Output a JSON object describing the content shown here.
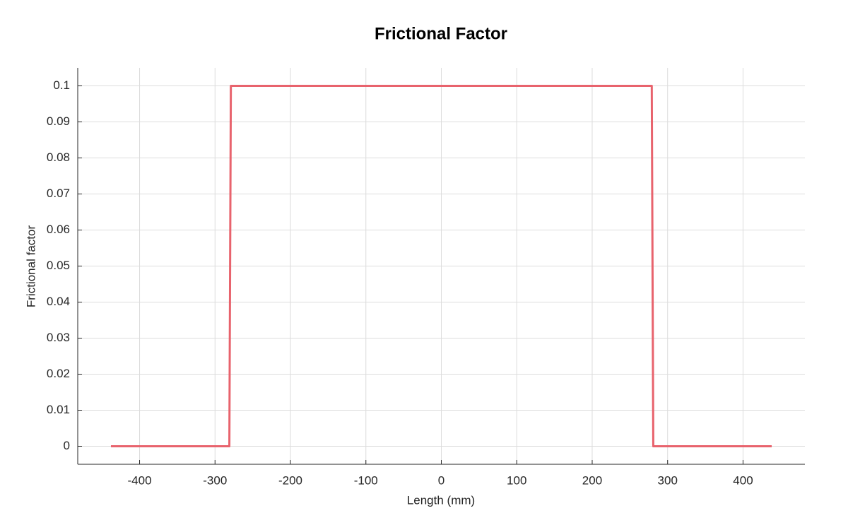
{
  "chart_data": {
    "type": "line",
    "title": "Frictional Factor",
    "x_label": "Length (mm)",
    "y_label": "Frictional factor",
    "x": [
      -438,
      -281,
      -279,
      279,
      281,
      438
    ],
    "values": [
      0,
      0,
      0.1,
      0.1,
      0,
      0
    ],
    "color": "#e8636d",
    "xlim": [
      -482,
      482
    ],
    "ylim": [
      -0.005,
      0.105
    ],
    "xticks": [
      -400,
      -300,
      -200,
      -100,
      0,
      100,
      200,
      300,
      400
    ],
    "yticks": [
      0,
      0.01,
      0.02,
      0.03,
      0.04,
      0.05,
      0.06,
      0.07,
      0.08,
      0.09,
      0.1
    ],
    "grid": true
  }
}
